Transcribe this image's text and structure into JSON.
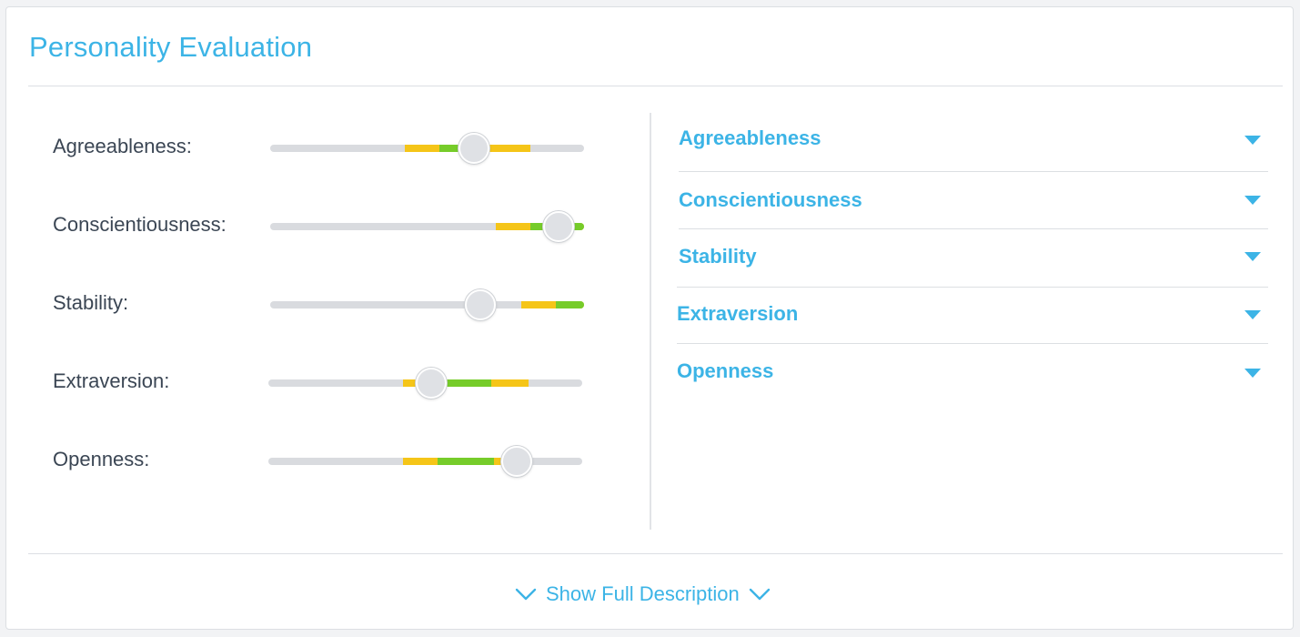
{
  "panel": {
    "title": "Personality Evaluation"
  },
  "colors": {
    "accent": "#3cb4e6",
    "track": "#d9dbdf",
    "yellow": "#f5c518",
    "green": "#76cc2a",
    "text": "#3b4654"
  },
  "traits": [
    {
      "label": "Agreeableness:",
      "value": 0.65,
      "yellow_range": [
        0.43,
        0.83
      ],
      "green_range": [
        0.54,
        0.68
      ]
    },
    {
      "label": "Conscientiousness:",
      "value": 0.92,
      "yellow_range": [
        0.72,
        1.0
      ],
      "green_range": [
        0.83,
        1.0
      ]
    },
    {
      "label": "Stability:",
      "value": 0.67,
      "yellow_range": [
        0.8,
        1.0
      ],
      "green_range": [
        0.91,
        1.0
      ]
    },
    {
      "label": "Extraversion:",
      "value": 0.52,
      "yellow_range": [
        0.43,
        0.83
      ],
      "green_range": [
        0.52,
        0.71
      ]
    },
    {
      "label": "Openness:",
      "value": 0.79,
      "yellow_range": [
        0.43,
        0.8
      ],
      "green_range": [
        0.54,
        0.72
      ]
    }
  ],
  "accordion": {
    "items": [
      {
        "label": "Agreeableness",
        "icon": "caret-down-icon"
      },
      {
        "label": "Conscientiousness",
        "icon": "caret-down-icon"
      },
      {
        "label": "Stability",
        "icon": "caret-down-icon"
      },
      {
        "label": "Extraversion",
        "icon": "caret-down-icon"
      },
      {
        "label": "Openness",
        "icon": "caret-down-icon"
      }
    ]
  },
  "footer": {
    "label": "Show Full Description",
    "icon": "chevron-down-icon"
  }
}
